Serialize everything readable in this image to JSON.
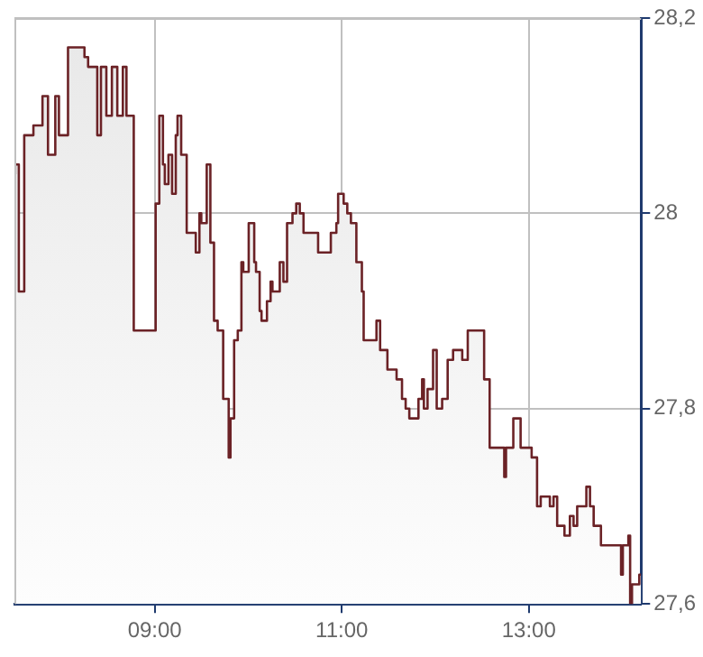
{
  "chart_data": {
    "type": "step",
    "xlim": [
      7.5,
      14.2
    ],
    "ylim": [
      27.6,
      28.2
    ],
    "xticks": [
      {
        "value": 9,
        "label": "09:00"
      },
      {
        "value": 11,
        "label": "11:00"
      },
      {
        "value": 13,
        "label": "13:00"
      }
    ],
    "yticks": [
      {
        "value": 27.6,
        "label": "27,6"
      },
      {
        "value": 27.8,
        "label": "27,8"
      },
      {
        "value": 28,
        "label": "28"
      },
      {
        "value": 28.2,
        "label": "28,2"
      }
    ],
    "grid": true,
    "marker": "none",
    "series": [
      {
        "color": "#6b2226",
        "x": [
          7.508,
          7.547,
          7.605,
          7.703,
          7.8,
          7.859,
          7.937,
          7.976,
          8.073,
          8.249,
          8.288,
          8.386,
          8.425,
          8.483,
          8.542,
          8.6,
          8.659,
          8.698,
          8.776,
          9.01,
          9.049,
          9.088,
          9.108,
          9.147,
          9.186,
          9.225,
          9.244,
          9.283,
          9.342,
          9.439,
          9.478,
          9.498,
          9.556,
          9.595,
          9.634,
          9.673,
          9.732,
          9.791,
          9.81,
          9.849,
          9.888,
          9.927,
          9.947,
          10.005,
          10.064,
          10.083,
          10.122,
          10.142,
          10.2,
          10.239,
          10.259,
          10.337,
          10.376,
          10.415,
          10.473,
          10.513,
          10.551,
          10.591,
          10.61,
          10.688,
          10.747,
          10.883,
          10.942,
          10.961,
          11.02,
          11.059,
          11.098,
          11.156,
          11.215,
          11.234,
          11.371,
          11.41,
          11.43,
          11.488,
          11.586,
          11.644,
          11.683,
          11.722,
          11.82,
          11.859,
          11.878,
          11.917,
          11.976,
          12.015,
          12.073,
          12.132,
          12.19,
          12.288,
          12.347,
          12.522,
          12.581,
          12.62,
          12.737,
          12.756,
          12.834,
          12.912,
          13.03,
          13.088,
          13.127,
          13.225,
          13.264,
          13.303,
          13.381,
          13.439,
          13.478,
          13.517,
          13.615,
          13.654,
          13.693,
          13.771,
          13.829,
          13.986,
          14.005,
          14.064,
          14.083,
          14.103,
          14.122,
          14.181,
          14.2
        ],
        "values": [
          28.04,
          28.05,
          27.92,
          28.08,
          28.09,
          28.12,
          28.06,
          28.12,
          28.08,
          28.17,
          28.16,
          28.15,
          28.08,
          28.15,
          28.1,
          28.15,
          28.1,
          28.15,
          28.1,
          27.88,
          28.01,
          28.1,
          28.05,
          28.03,
          28.06,
          28.02,
          28.08,
          28.1,
          28.06,
          27.98,
          27.96,
          28.0,
          27.99,
          28.05,
          27.97,
          27.89,
          27.88,
          27.81,
          27.75,
          27.79,
          27.87,
          27.88,
          27.95,
          27.94,
          27.99,
          27.95,
          27.94,
          27.9,
          27.89,
          27.91,
          27.93,
          27.92,
          27.95,
          27.93,
          27.99,
          28.0,
          28.01,
          28.0,
          27.98,
          27.98,
          27.98,
          27.96,
          27.98,
          27.99,
          28.02,
          28.01,
          28.0,
          27.99,
          27.95,
          27.92,
          27.87,
          27.89,
          27.86,
          27.86,
          27.84,
          27.83,
          27.81,
          27.8,
          27.79,
          27.81,
          27.83,
          27.8,
          27.82,
          27.86,
          27.8,
          27.81,
          27.85,
          27.86,
          27.85,
          27.88,
          27.83,
          27.76,
          27.76,
          27.73,
          27.76,
          27.79,
          27.76,
          27.75,
          27.7,
          27.71,
          27.7,
          27.71,
          27.68,
          27.67,
          27.69,
          27.68,
          27.7,
          27.72,
          27.7,
          27.68,
          27.66,
          27.66,
          27.63,
          27.66,
          27.67,
          27.6,
          27.62,
          27.62,
          27.63
        ]
      }
    ]
  }
}
